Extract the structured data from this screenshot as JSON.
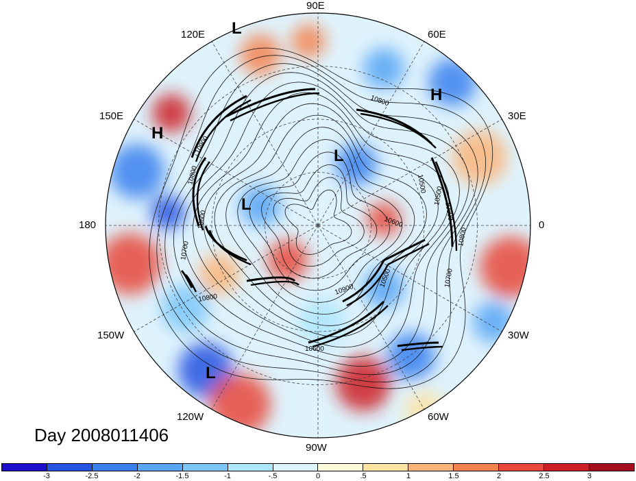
{
  "title": "Day 2008011406",
  "longitude_labels": [
    {
      "id": "90E",
      "text": "90E"
    },
    {
      "id": "60E",
      "text": "60E"
    },
    {
      "id": "30E",
      "text": "30E"
    },
    {
      "id": "0",
      "text": "0"
    },
    {
      "id": "30W",
      "text": "30W"
    },
    {
      "id": "60W",
      "text": "60W"
    },
    {
      "id": "90W",
      "text": "90W"
    },
    {
      "id": "120W",
      "text": "120W"
    },
    {
      "id": "150W",
      "text": "150W"
    },
    {
      "id": "180",
      "text": "180"
    },
    {
      "id": "150E",
      "text": "150E"
    },
    {
      "id": "120E",
      "text": "120E"
    }
  ],
  "pressure_centers": [
    {
      "id": "L-120E",
      "text": "L"
    },
    {
      "id": "H-60E",
      "text": "H"
    },
    {
      "id": "H-150E",
      "text": "H"
    },
    {
      "id": "L-center-east",
      "text": "L"
    },
    {
      "id": "L-center-west",
      "text": "L"
    },
    {
      "id": "L-120W",
      "text": "L"
    }
  ],
  "contour_labels": [
    "10900",
    "10800",
    "10600",
    "10700",
    "10800",
    "10800",
    "10500",
    "10600",
    "10800",
    "10900",
    "10500",
    "10700",
    "10600",
    "10800",
    "10500"
  ],
  "colorbar": {
    "colors": [
      "#1d0ec9",
      "#2554e0",
      "#3b80ef",
      "#58a6f5",
      "#7cc5f8",
      "#aee6fb",
      "#dff5fd",
      "#fefbdc",
      "#fde3a4",
      "#fbb47a",
      "#f5824f",
      "#e8483b",
      "#cc1f27",
      "#a30d1f"
    ],
    "ticks": [
      "-3",
      "-2.5",
      "-2",
      "-1.5",
      "-1",
      "-.5",
      "0",
      ".5",
      "1",
      "1.5",
      "2",
      "2.5",
      "3"
    ]
  }
}
